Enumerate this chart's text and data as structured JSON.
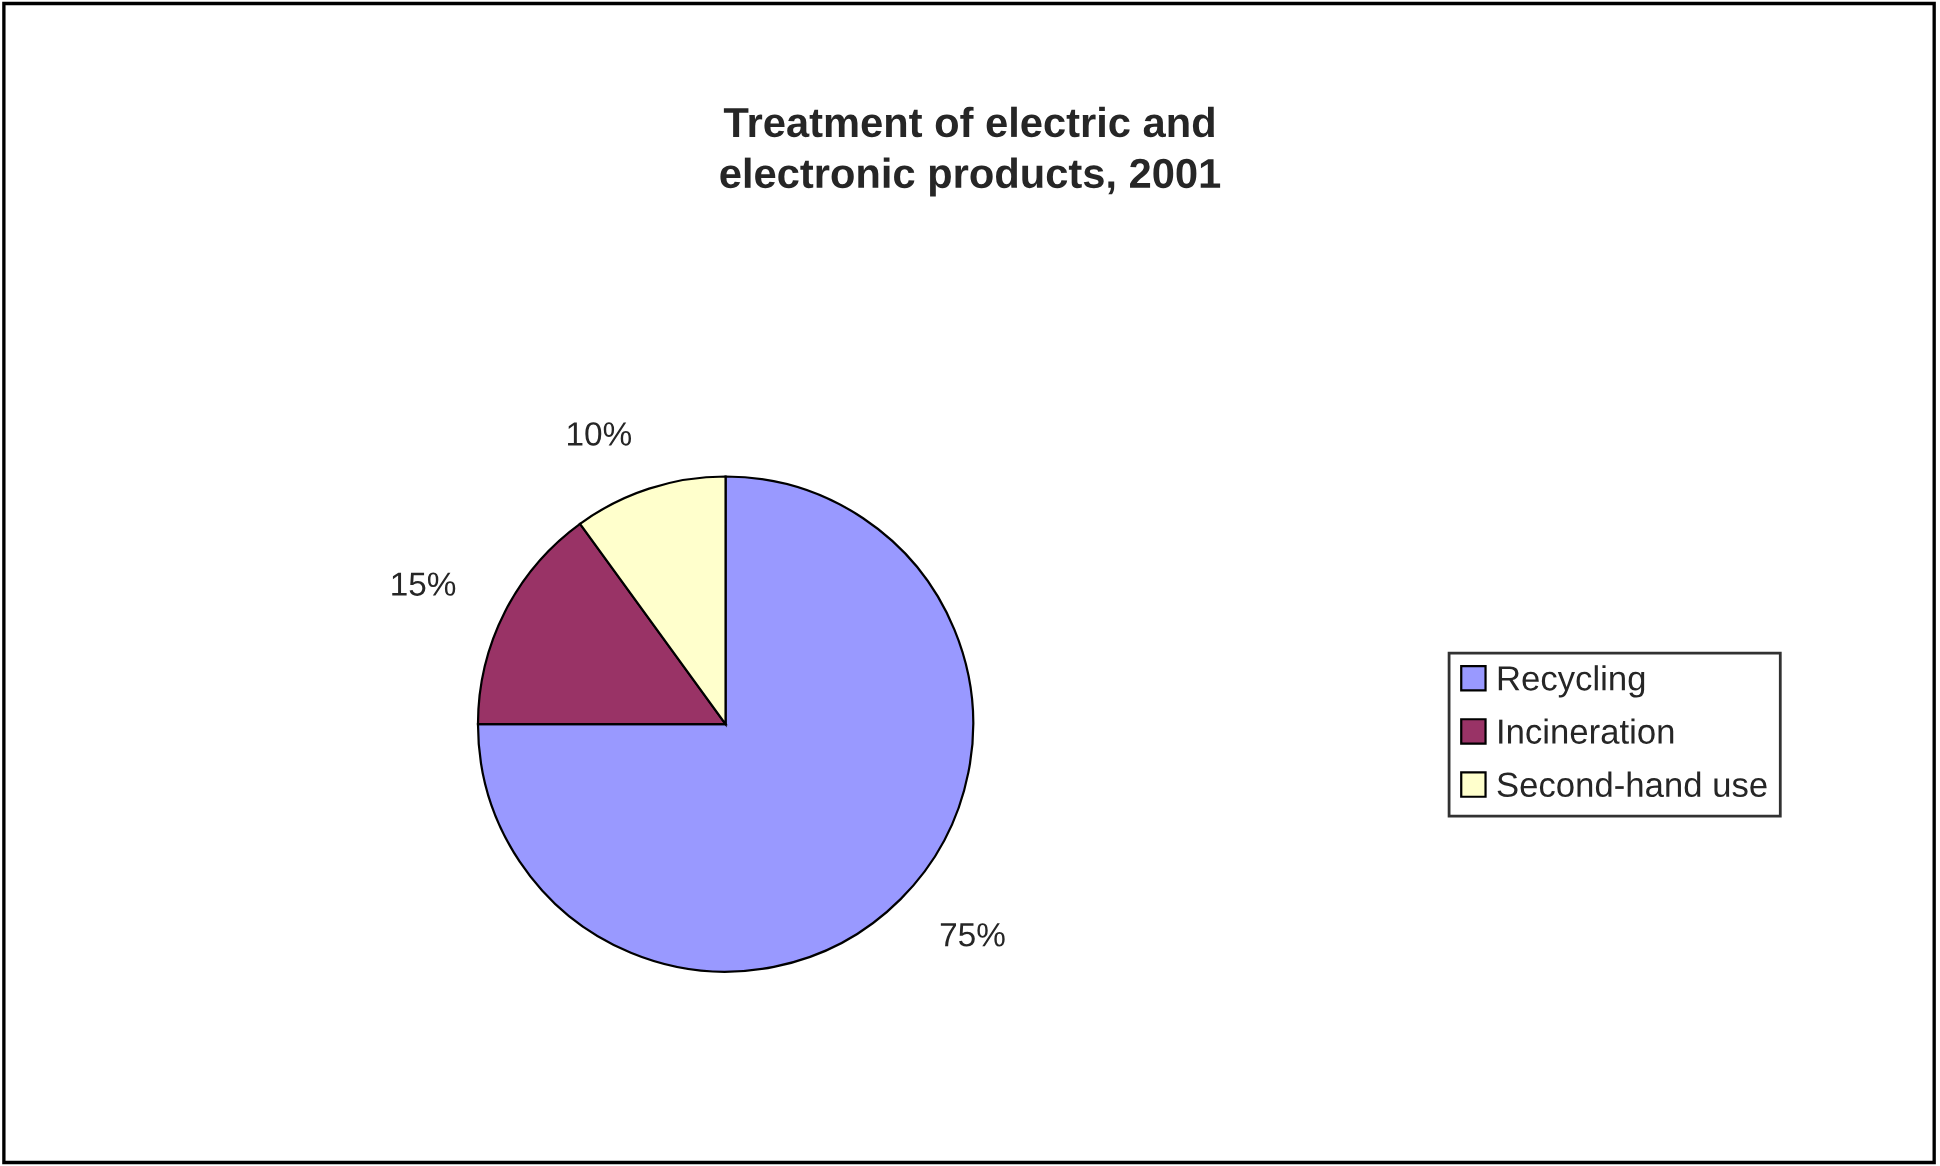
{
  "chart_data": {
    "type": "pie",
    "title": "Treatment of electric and\nelectronic products, 2001",
    "categories": [
      "Recycling",
      "Incineration",
      "Second-hand use"
    ],
    "values": [
      75,
      15,
      10
    ],
    "colors": [
      "#9999ff",
      "#993366",
      "#ffffcc"
    ],
    "value_labels": [
      "75%",
      "15%",
      "10%"
    ],
    "legend": "right"
  }
}
